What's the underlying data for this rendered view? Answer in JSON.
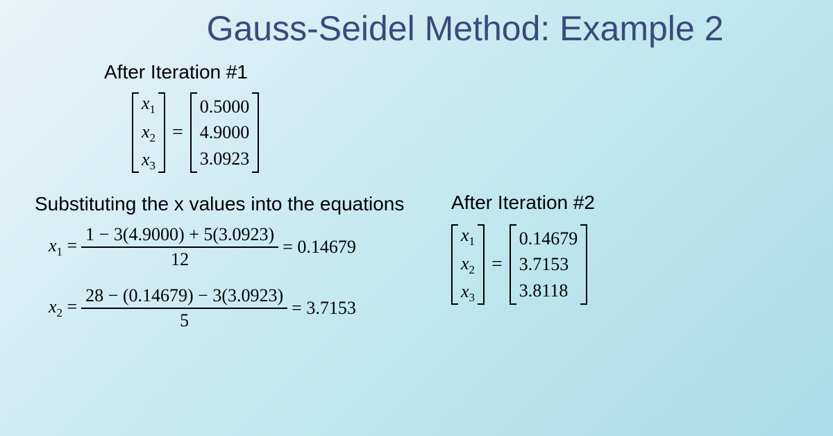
{
  "title": "Gauss-Seidel Method: Example 2",
  "iter1": {
    "label": "After Iteration #1",
    "vars": [
      "x₁",
      "x₂",
      "x₃"
    ],
    "vals": [
      "0.5000",
      "4.9000",
      "3.0923"
    ]
  },
  "subst_label": "Substituting the x values into the equations",
  "eqs": {
    "e1": {
      "lhs": "x₁",
      "num": "1 − 3(4.9000) + 5(3.0923)",
      "den": "12",
      "res": "0.14679"
    },
    "e2": {
      "lhs": "x₂",
      "num": "28 − (0.14679) − 3(3.0923)",
      "den": "5",
      "res": "3.7153"
    }
  },
  "iter2": {
    "label": "After Iteration #2",
    "vars": [
      "x₁",
      "x₂",
      "x₃"
    ],
    "vals": [
      "0.14679",
      "3.7153",
      "3.8118"
    ]
  },
  "colors": {
    "title_color": "#3a4a7a",
    "text_color": "#000000",
    "bg_gradient_start": "#e8f4f8",
    "bg_gradient_end": "#a8dce8"
  },
  "fonts": {
    "title_family": "Arial",
    "title_size_pt": 38,
    "body_family": "Arial",
    "body_size_pt": 21,
    "math_family": "Times New Roman",
    "math_size_pt": 20
  }
}
